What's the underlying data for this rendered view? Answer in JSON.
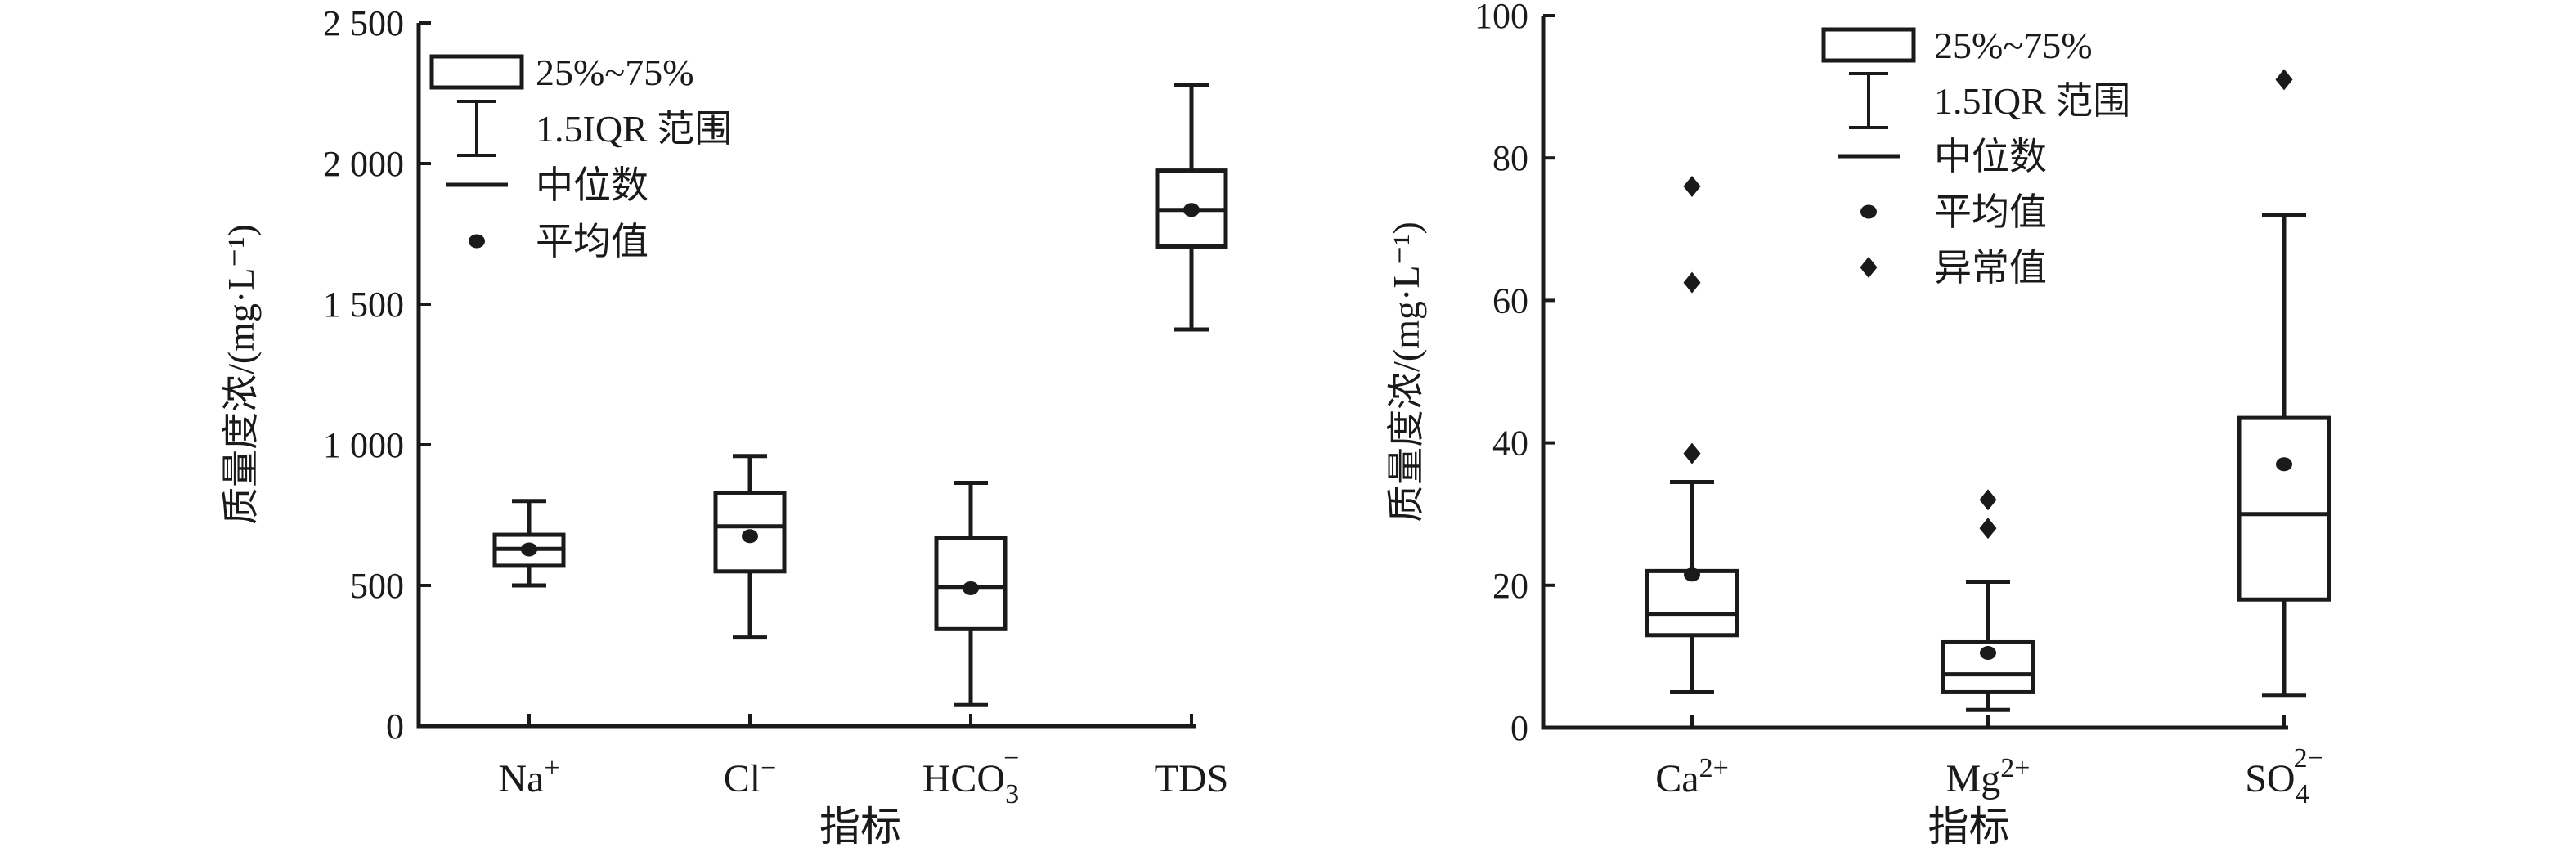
{
  "figure": {
    "background": "#ffffff",
    "ink": "#1a1a1a"
  },
  "chart_data": [
    {
      "id": "left-boxplot",
      "type": "box",
      "title": "",
      "xlabel": "指标",
      "ylabel": "质量度浓/(mg·L⁻¹)",
      "ylim": [
        0,
        2500
      ],
      "yticks": [
        0,
        500,
        1000,
        1500,
        2000,
        2500
      ],
      "ytick_labels": [
        "0",
        "500",
        "1 000",
        "1 500",
        "2 000",
        "2 500"
      ],
      "grid": false,
      "legend_position": "upper-left-inside",
      "legend": [
        {
          "symbol": "box",
          "label": "25%~75%"
        },
        {
          "symbol": "whisker",
          "label": "1.5IQR 范围"
        },
        {
          "symbol": "median",
          "label": "中位数"
        },
        {
          "symbol": "mean",
          "label": "平均值"
        }
      ],
      "series": [
        {
          "name": "Na+",
          "category": {
            "base": "Na",
            "sup": "+"
          },
          "whisker_low": 500,
          "q1": 570,
          "median": 630,
          "q3": 680,
          "whisker_high": 800,
          "mean": 628,
          "outliers": []
        },
        {
          "name": "Cl-",
          "category": {
            "base": "Cl",
            "sup": "−"
          },
          "whisker_low": 315,
          "q1": 550,
          "median": 710,
          "q3": 830,
          "whisker_high": 960,
          "mean": 675,
          "outliers": []
        },
        {
          "name": "HCO3-",
          "category": {
            "base": "HCO",
            "sub": "3",
            "sup": "−",
            "stack": true
          },
          "whisker_low": 75,
          "q1": 345,
          "median": 495,
          "q3": 670,
          "whisker_high": 865,
          "mean": 490,
          "outliers": []
        },
        {
          "name": "TDS",
          "category": {
            "base": "TDS"
          },
          "whisker_low": 1410,
          "q1": 1705,
          "median": 1835,
          "q3": 1975,
          "whisker_high": 2280,
          "mean": 1835,
          "outliers": []
        }
      ]
    },
    {
      "id": "right-boxplot",
      "type": "box",
      "title": "",
      "xlabel": "指标",
      "ylabel": "质量度浓/(mg·L⁻¹)",
      "ylim": [
        0,
        100
      ],
      "yticks": [
        0,
        20,
        40,
        60,
        80,
        100
      ],
      "ytick_labels": [
        "0",
        "20",
        "40",
        "60",
        "80",
        "100"
      ],
      "grid": false,
      "legend_position": "upper-left-inside",
      "legend": [
        {
          "symbol": "box",
          "label": "25%~75%"
        },
        {
          "symbol": "whisker",
          "label": "1.5IQR 范围"
        },
        {
          "symbol": "median",
          "label": "中位数"
        },
        {
          "symbol": "mean",
          "label": "平均值"
        },
        {
          "symbol": "outlier",
          "label": "异常值"
        }
      ],
      "series": [
        {
          "name": "Ca2+",
          "category": {
            "base": "Ca",
            "sup": "2+"
          },
          "whisker_low": 5,
          "q1": 13,
          "median": 16,
          "q3": 22,
          "whisker_high": 34.5,
          "mean": 21.5,
          "outliers": [
            38.5,
            62.5,
            76
          ]
        },
        {
          "name": "Mg2+",
          "category": {
            "base": "Mg",
            "sup": "2+"
          },
          "whisker_low": 2.5,
          "q1": 5,
          "median": 7.5,
          "q3": 12,
          "whisker_high": 20.5,
          "mean": 10.5,
          "outliers": [
            28,
            32
          ]
        },
        {
          "name": "SO42-",
          "category": {
            "base": "SO",
            "sub": "4",
            "sup": "2−",
            "stack": true
          },
          "whisker_low": 4.5,
          "q1": 18,
          "median": 30,
          "q3": 43.5,
          "whisker_high": 72,
          "mean": 37,
          "outliers": [
            91
          ]
        }
      ]
    }
  ]
}
